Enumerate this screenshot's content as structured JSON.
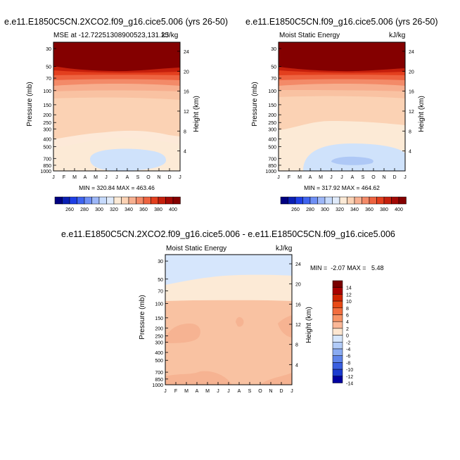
{
  "chart_data": [
    {
      "type": "heatmap",
      "title": "e.e11.E1850C5CN.2XCO2.f09_g16.cice5.006 (yrs 26-50)",
      "subtitle_left": "MSE at -12.72251308900523,131.25",
      "subtitle_right": "kJ/kg",
      "ylabel": "Pressure (mb)",
      "ylabel_right": "Height (km)",
      "x_ticks": [
        "J",
        "F",
        "M",
        "A",
        "M",
        "J",
        "J",
        "A",
        "S",
        "O",
        "N",
        "D",
        "J"
      ],
      "y_ticks": [
        "30",
        "50",
        "70",
        "100",
        "150",
        "200",
        "250",
        "300",
        "400",
        "500",
        "700",
        "850",
        "1000"
      ],
      "y_ticks_right": [
        "24",
        "20",
        "16",
        "12",
        "8",
        "4"
      ],
      "stats": "MIN = 320.84 MAX = 463.46",
      "colorbar_labels": [
        "260",
        "280",
        "300",
        "320",
        "340",
        "360",
        "380",
        "400"
      ]
    },
    {
      "type": "heatmap",
      "title": "e.e11.E1850C5CN.f09_g16.cice5.006 (yrs 26-50)",
      "subtitle_left": "Moist Static Energy",
      "subtitle_right": "kJ/kg",
      "ylabel": "Pressure (mb)",
      "ylabel_right": "Height (km)",
      "x_ticks": [
        "J",
        "F",
        "M",
        "A",
        "M",
        "J",
        "J",
        "A",
        "S",
        "O",
        "N",
        "D",
        "J"
      ],
      "y_ticks": [
        "30",
        "50",
        "70",
        "100",
        "150",
        "200",
        "250",
        "300",
        "400",
        "500",
        "700",
        "850",
        "1000"
      ],
      "y_ticks_right": [
        "24",
        "20",
        "16",
        "12",
        "8",
        "4"
      ],
      "stats": "MIN = 317.92 MAX = 464.62",
      "colorbar_labels": [
        "260",
        "280",
        "300",
        "320",
        "340",
        "360",
        "380",
        "400"
      ]
    },
    {
      "type": "heatmap",
      "title": "e.e11.E1850C5CN.2XCO2.f09_g16.cice5.006 - e.e11.E1850C5CN.f09_g16.cice5.006",
      "subtitle_left": "Moist Static Energy",
      "subtitle_right": "kJ/kg",
      "ylabel": "Pressure (mb)",
      "ylabel_right": "Height (km)",
      "x_ticks": [
        "J",
        "F",
        "M",
        "A",
        "M",
        "J",
        "J",
        "A",
        "S",
        "O",
        "N",
        "D",
        "J"
      ],
      "y_ticks": [
        "30",
        "50",
        "70",
        "100",
        "150",
        "200",
        "250",
        "300",
        "400",
        "500",
        "700",
        "850",
        "1000"
      ],
      "y_ticks_right": [
        "24",
        "20",
        "16",
        "12",
        "8",
        "4"
      ],
      "stats": "MIN =  -2.07 MAX =   5.48",
      "colorbar_labels": [
        "14",
        "12",
        "10",
        "8",
        "6",
        "4",
        "2",
        "0",
        "-2",
        "-4",
        "-6",
        "-8",
        "-10",
        "-12",
        "-14"
      ]
    }
  ],
  "colors": {
    "abs_scale": [
      "#000080",
      "#0a1fb4",
      "#1e3fe6",
      "#3f64f0",
      "#6e8ff5",
      "#9db7f8",
      "#c6dafc",
      "#dfeafa",
      "#fcead6",
      "#fbd2b4",
      "#f7b090",
      "#f38a68",
      "#ee6340",
      "#e33f1e",
      "#c51f0c",
      "#a20804",
      "#840000"
    ],
    "diff_scale": [
      "#7a0000",
      "#a80000",
      "#d02400",
      "#e84a16",
      "#f26d3e",
      "#f79366",
      "#fab797",
      "#fde6d0",
      "#d6e6fc",
      "#b1cbf8",
      "#8aabf2",
      "#5f84ea",
      "#3a5fe0",
      "#1c3cd0",
      "#0000a0"
    ]
  }
}
